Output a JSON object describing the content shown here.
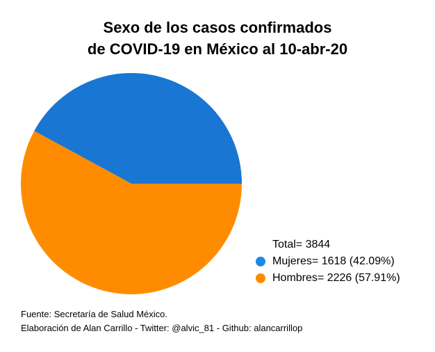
{
  "colors": {
    "mujeres": "#1976d2",
    "hombres": "#ff8c00",
    "legend_mujeres": "#1e88e5",
    "legend_hombres": "#fb8c00"
  },
  "chart_data": {
    "type": "pie",
    "title": "Sexo de los casos confirmados\nde COVID-19 en México al 10-abr-20",
    "title_lines": [
      "Sexo de los casos confirmados",
      "de COVID-19 en México al 10-abr-20"
    ],
    "categories": [
      "Mujeres",
      "Hombres"
    ],
    "values": [
      1618,
      2226
    ],
    "percentages": [
      42.09,
      57.91
    ],
    "total": 3844,
    "legend": {
      "total_label": "Total= 3844",
      "entries": [
        "Mujeres= 1618 (42.09%)",
        "Hombres= 2226 (57.91%)"
      ],
      "placement": "bottom-right"
    }
  },
  "footer": {
    "source": "Fuente: Secretaría de Salud México.",
    "credit": "Elaboración de Alan Carrillo - Twitter: @alvic_81 - Github: alancarrillop"
  }
}
